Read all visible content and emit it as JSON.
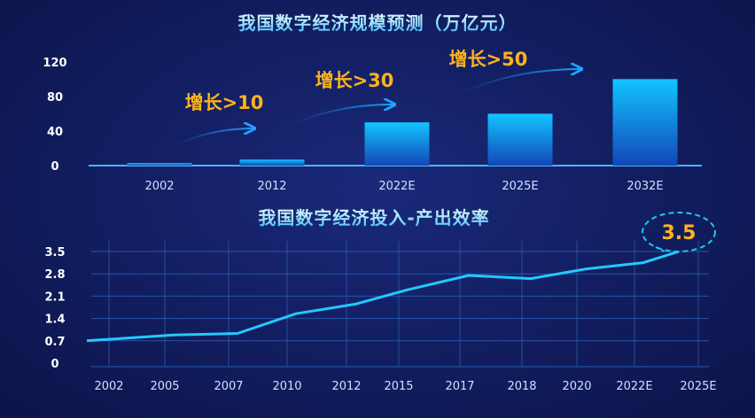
{
  "chart_data": [
    {
      "type": "bar",
      "title": "我国数字经济规模预测（万亿元）",
      "categories": [
        "2002",
        "2012",
        "2022E",
        "2025E",
        "2032E"
      ],
      "values": [
        3,
        7,
        50,
        60,
        100
      ],
      "ylim": [
        0,
        130
      ],
      "yticks": [
        0,
        40,
        80,
        120
      ],
      "grid": false,
      "annotations": [
        "增长>10",
        "增长>30",
        "增长>50"
      ]
    },
    {
      "type": "line",
      "title": "我国数字经济投入-产出效率",
      "x": [
        "2002",
        "2005",
        "2007",
        "2010",
        "2012",
        "2015",
        "2017",
        "2018",
        "2020",
        "2022E",
        "2025E"
      ],
      "series": [
        {
          "points": [
            [
              0,
              0.7
            ],
            [
              1,
              0.88
            ],
            [
              2,
              0.93
            ],
            [
              3,
              1.55
            ],
            [
              4,
              1.85
            ],
            [
              5,
              2.3
            ],
            [
              6,
              2.75
            ],
            [
              7,
              2.65
            ],
            [
              8,
              2.95
            ],
            [
              9,
              3.15
            ],
            [
              10,
              3.5
            ]
          ]
        }
      ],
      "ylim": [
        0,
        3.5
      ],
      "yticks": [
        0,
        0.7,
        1.4,
        2.1,
        2.8,
        3.5
      ],
      "grid": true,
      "callout": "3.5"
    }
  ],
  "colors": {
    "accent": "#19c2ff",
    "line": "#25c8ff",
    "growth_text": "#ffb21c",
    "arrow": "#1a8cff"
  }
}
